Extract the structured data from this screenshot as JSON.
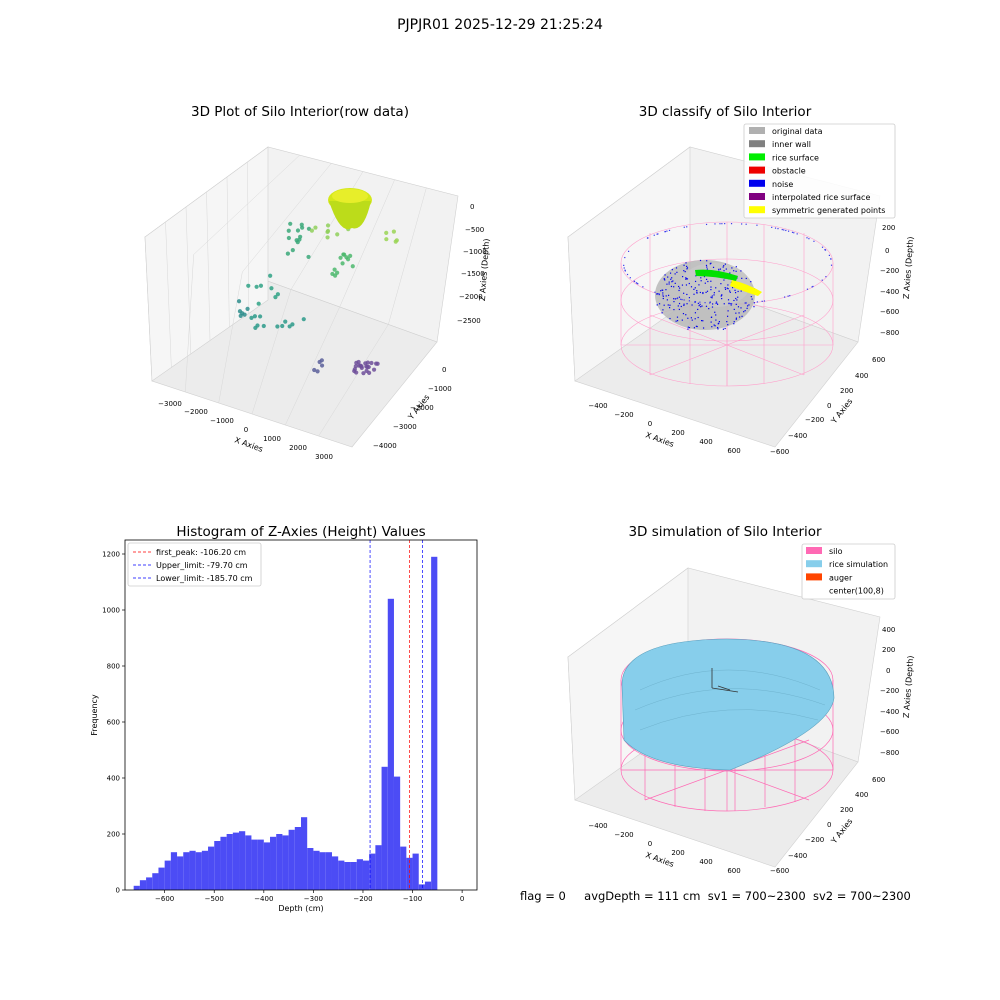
{
  "suptitle": "PJPJR01 2025-12-29 21:25:24",
  "panels": {
    "raw": {
      "title": "3D Plot of Silo Interior(row data)",
      "xlabel": "X Axies",
      "ylabel": "Y Axies",
      "zlabel": "Z Axies (Depth)",
      "xticks": [
        "−3000",
        "−2000",
        "−1000",
        "0",
        "1000",
        "2000",
        "3000"
      ],
      "yticks": [
        "0",
        "−1000",
        "−2000",
        "−3000",
        "−4000"
      ],
      "zticks": [
        "0",
        "−500",
        "−1000",
        "−1500",
        "−2000",
        "−2500"
      ]
    },
    "classify": {
      "title": "3D classify of Silo Interior",
      "xlabel": "X Axies",
      "ylabel": "Y Axies",
      "zlabel": "Z Axies (Depth)",
      "xticks": [
        "−400",
        "−200",
        "0",
        "200",
        "400",
        "600"
      ],
      "yticks": [
        "600",
        "400",
        "200",
        "0",
        "−200",
        "−400",
        "−600"
      ],
      "zticks": [
        "200",
        "0",
        "−200",
        "−400",
        "−600",
        "−800"
      ],
      "legend": [
        {
          "label": "original data",
          "color": "#b0b0b0"
        },
        {
          "label": "inner wall",
          "color": "#808080"
        },
        {
          "label": "rice surface",
          "color": "#00ee00"
        },
        {
          "label": "obstacle",
          "color": "#ee0000"
        },
        {
          "label": "noise",
          "color": "#0000ee"
        },
        {
          "label": "interpolated rice surface",
          "color": "#800080"
        },
        {
          "label": "symmetric generated points",
          "color": "#ffff00"
        }
      ]
    },
    "simulation": {
      "title": "3D simulation of Silo Interior",
      "xlabel": "X Axies",
      "ylabel": "Y Axies",
      "zlabel": "Z Axies (Depth)",
      "xticks": [
        "−400",
        "−200",
        "0",
        "200",
        "400",
        "600"
      ],
      "yticks": [
        "600",
        "400",
        "200",
        "0",
        "−200",
        "−400",
        "−600"
      ],
      "zticks": [
        "400",
        "200",
        "0",
        "−200",
        "−400",
        "−600",
        "−800"
      ],
      "legend": [
        {
          "label": "silo",
          "color": "#ff69b4"
        },
        {
          "label": "rice simulation",
          "color": "#87ceeb"
        },
        {
          "label": "auger",
          "color": "#ff4500"
        },
        {
          "label": "center(100,8)",
          "color": ""
        }
      ]
    }
  },
  "status": {
    "flag": "flag = 0",
    "avg_depth": "avgDepth = 111 cm",
    "sv1": "sv1 = 700~2300",
    "sv2": "sv2 = 700~2300"
  },
  "chart_data": [
    {
      "type": "scatter",
      "title": "3D Plot of Silo Interior(row data)",
      "xlabel": "X Axies",
      "ylabel": "Y Axies",
      "zlabel": "Z Axies (Depth)",
      "xlim": [
        -3500,
        3500
      ],
      "ylim": [
        -4500,
        1000
      ],
      "zlim": [
        -3000,
        200
      ]
    },
    {
      "type": "scatter",
      "title": "3D classify of Silo Interior",
      "xlabel": "X Axies",
      "ylabel": "Y Axies",
      "zlabel": "Z Axies (Depth)",
      "series": [
        {
          "name": "original data"
        },
        {
          "name": "inner wall"
        },
        {
          "name": "rice surface"
        },
        {
          "name": "obstacle"
        },
        {
          "name": "noise"
        },
        {
          "name": "interpolated rice surface"
        },
        {
          "name": "symmetric generated points"
        }
      ],
      "legend": "top-right"
    },
    {
      "type": "bar",
      "title": "Histogram of Z-Axies (Height) Values",
      "xlabel": "Depth (cm)",
      "ylabel": "Frequency",
      "xlim": [
        -680,
        30
      ],
      "ylim": [
        0,
        1250
      ],
      "bin_width": 12.5,
      "bin_start": -662.5,
      "values": [
        15,
        35,
        45,
        60,
        80,
        105,
        135,
        120,
        135,
        140,
        135,
        140,
        155,
        175,
        190,
        200,
        205,
        210,
        195,
        180,
        180,
        170,
        190,
        200,
        195,
        215,
        225,
        260,
        150,
        140,
        135,
        135,
        120,
        105,
        100,
        100,
        110,
        105,
        130,
        160,
        440,
        1040,
        405,
        155,
        115,
        130,
        20,
        30,
        1190
      ],
      "xticks": [
        "−600",
        "−500",
        "−400",
        "−300",
        "−200",
        "−100",
        "0"
      ],
      "yticks": [
        "0",
        "200",
        "400",
        "600",
        "800",
        "1000",
        "1200"
      ],
      "vlines": [
        {
          "label": "first_peak: -106.20 cm",
          "x": -106.2,
          "color": "#ff0000"
        },
        {
          "label": "Upper_limit: -79.70 cm",
          "x": -79.7,
          "color": "#0000ff"
        },
        {
          "label": "Lower_limit: -185.70 cm",
          "x": -185.7,
          "color": "#0000ff"
        }
      ],
      "bar_color": "#4c4cf5",
      "legend": "top-left"
    },
    {
      "type": "surface",
      "title": "3D simulation of Silo Interior",
      "xlabel": "X Axies",
      "ylabel": "Y Axies",
      "zlabel": "Z Axies (Depth)",
      "series": [
        {
          "name": "silo"
        },
        {
          "name": "rice simulation"
        },
        {
          "name": "auger"
        }
      ],
      "legend": "top-right"
    }
  ]
}
